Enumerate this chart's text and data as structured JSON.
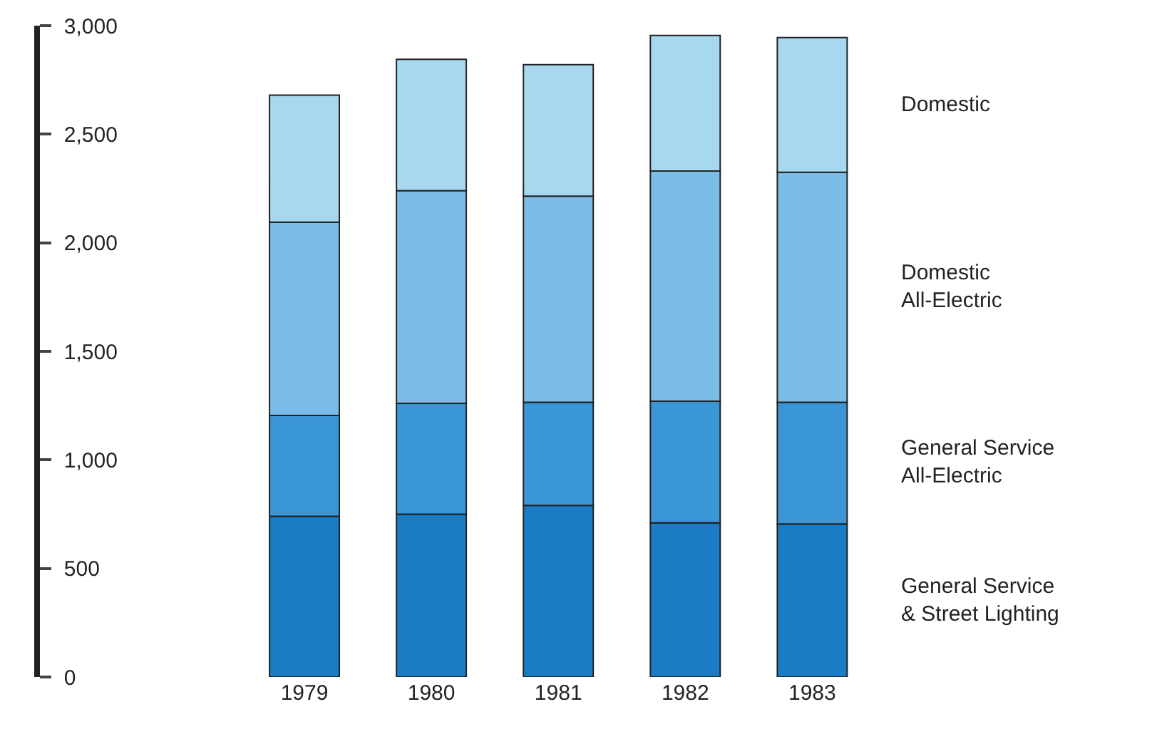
{
  "chart_data": {
    "type": "bar",
    "stacked": true,
    "categories": [
      "1979",
      "1980",
      "1981",
      "1982",
      "1983"
    ],
    "series": [
      {
        "name": "General Service\n& Street Lighting",
        "color": "#1a7cc4",
        "values": [
          740,
          750,
          790,
          710,
          705
        ]
      },
      {
        "name": "General Service\nAll-Electric",
        "color": "#3a96d4",
        "values": [
          465,
          510,
          475,
          560,
          560
        ]
      },
      {
        "name": "Domestic\nAll-Electric",
        "color": "#7bbde6",
        "values": [
          890,
          980,
          950,
          1060,
          1060
        ]
      },
      {
        "name": "Domestic",
        "color": "#a8d8f0",
        "values": [
          585,
          605,
          605,
          625,
          620
        ]
      }
    ],
    "ylim": [
      0,
      3000
    ],
    "yticks": [
      0,
      500,
      {
        "value": 1000,
        "label": "1,000"
      },
      {
        "value": 1500,
        "label": "1,500"
      },
      {
        "value": 2000,
        "label": "2,000"
      },
      {
        "value": 2500,
        "label": "2,500"
      },
      {
        "value": 3000,
        "label": "3,000"
      }
    ],
    "legend": "right"
  }
}
